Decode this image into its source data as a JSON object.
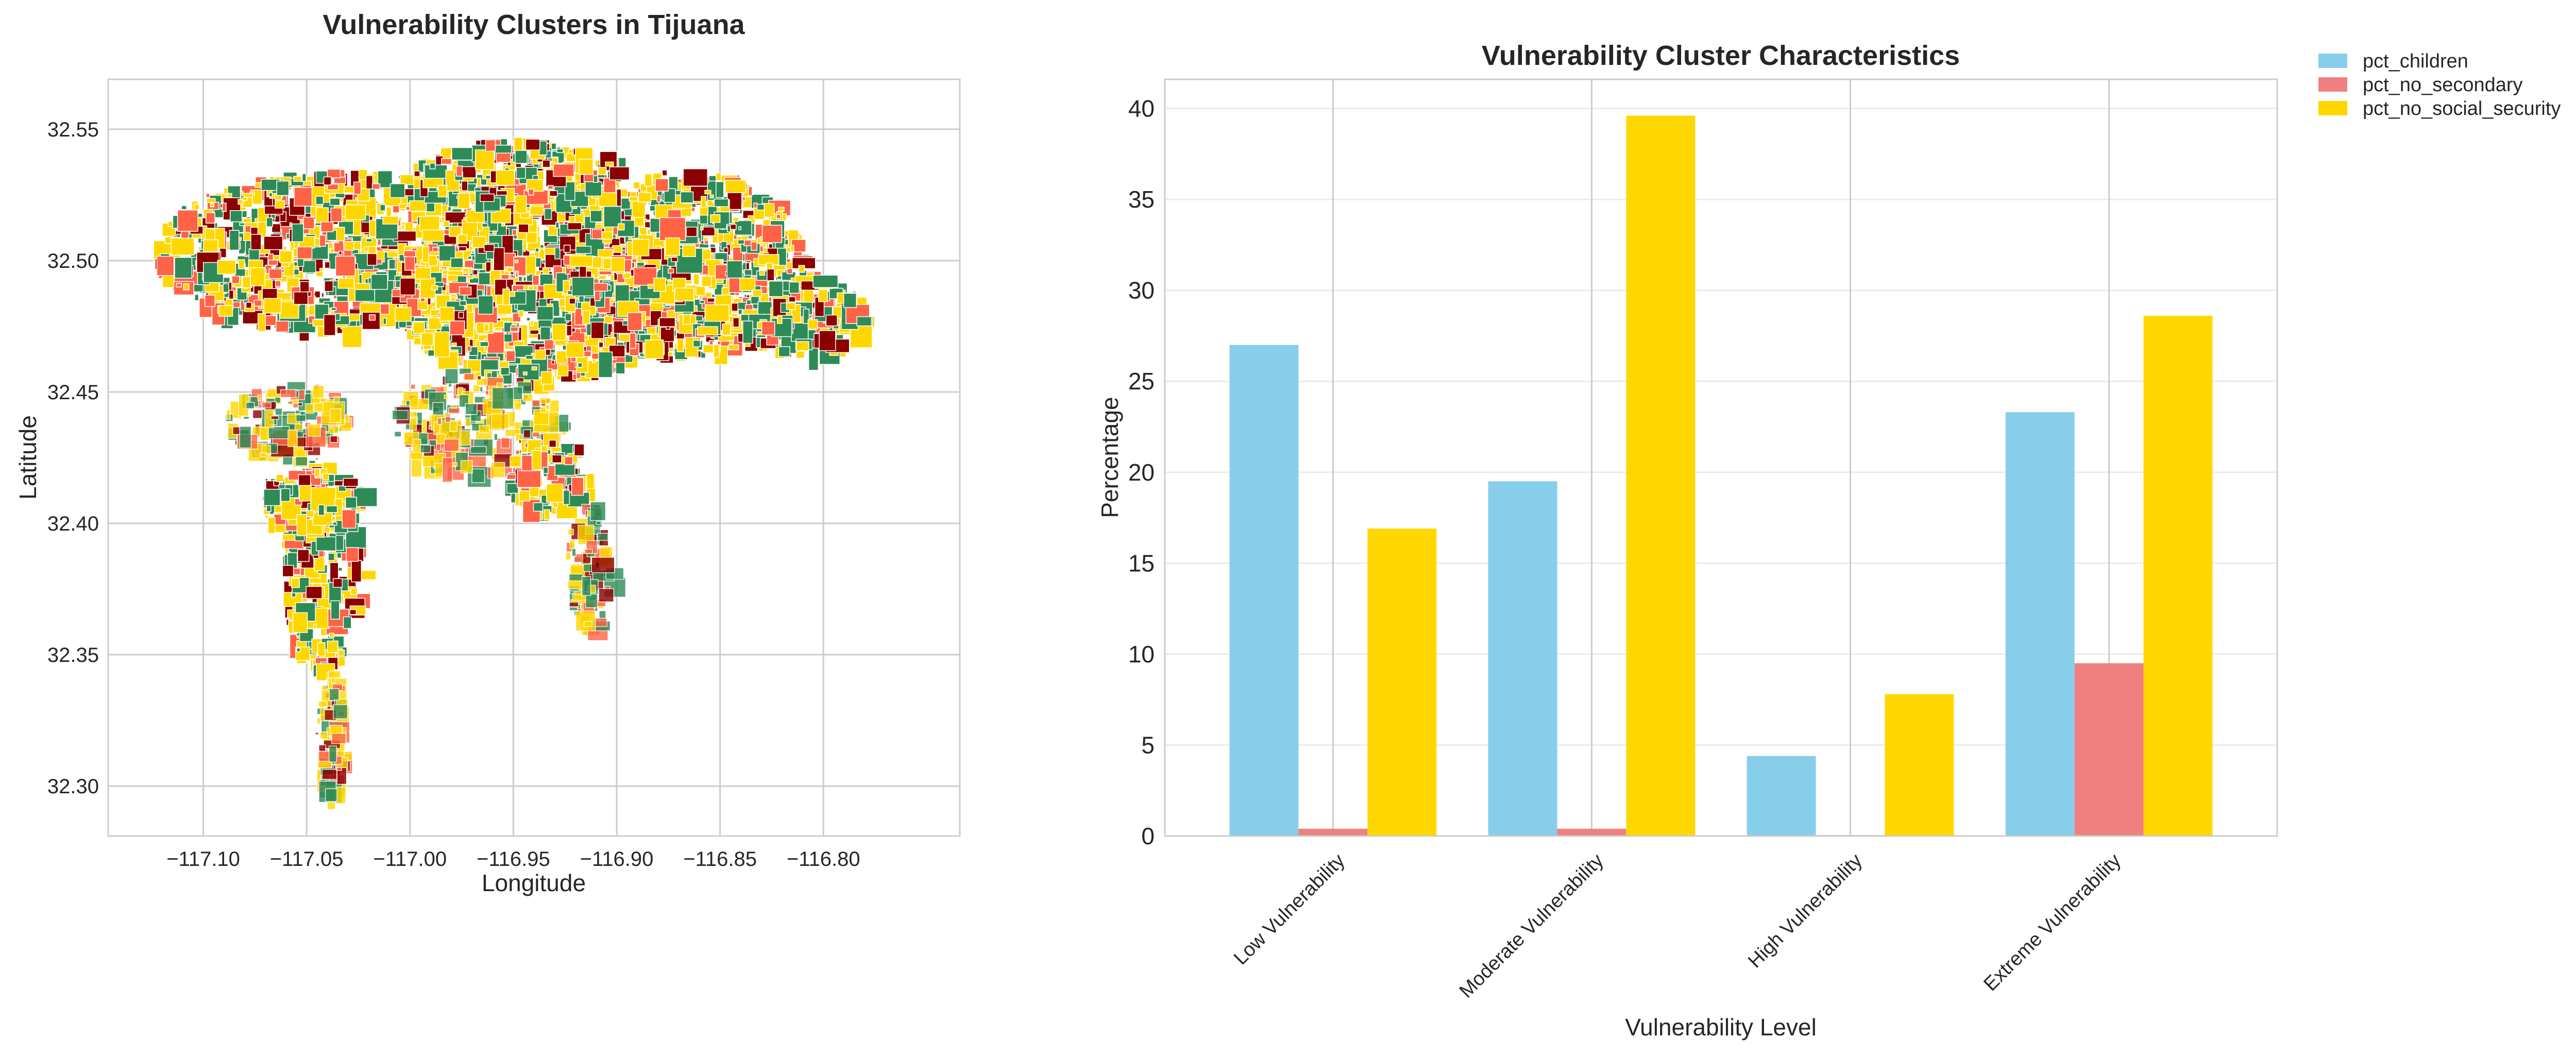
{
  "chart_data": [
    {
      "type": "map",
      "title": "Vulnerability Clusters in Tijuana",
      "xlabel": "Longitude",
      "ylabel": "Latitude",
      "xlim": [
        -117.146,
        -116.734
      ],
      "ylim": [
        32.281,
        32.569
      ],
      "xticks": [
        -117.1,
        -117.05,
        -117.0,
        -116.95,
        -116.9,
        -116.85,
        -116.8
      ],
      "xtick_labels": [
        "−117.10",
        "−117.05",
        "−117.00",
        "−116.95",
        "−116.90",
        "−116.85",
        "−116.80"
      ],
      "yticks": [
        32.3,
        32.35,
        32.4,
        32.45,
        32.5,
        32.55
      ],
      "ytick_labels": [
        "32.30",
        "32.35",
        "32.40",
        "32.45",
        "32.50",
        "32.55"
      ],
      "grid": true,
      "cluster_colors": [
        "#2E8B57",
        "#FFD700",
        "#FF6347",
        "#8B0000"
      ]
    },
    {
      "type": "bar",
      "title": "Vulnerability Cluster Characteristics",
      "xlabel": "Vulnerability Level",
      "ylabel": "Percentage",
      "categories": [
        "Low Vulnerability",
        "Moderate Vulnerability",
        "High Vulnerability",
        "Extreme Vulnerability"
      ],
      "series": [
        {
          "name": "pct_children",
          "color": "#87CEEB",
          "values": [
            27.0,
            19.5,
            4.4,
            23.3
          ]
        },
        {
          "name": "pct_no_secondary",
          "color": "#F08080",
          "values": [
            0.4,
            0.4,
            0.05,
            9.5
          ]
        },
        {
          "name": "pct_no_social_security",
          "color": "#FFD700",
          "values": [
            16.9,
            39.6,
            7.8,
            28.6
          ]
        }
      ],
      "ylim": [
        0,
        41.6
      ],
      "yticks": [
        0,
        5,
        10,
        15,
        20,
        25,
        30,
        35,
        40
      ],
      "grid": true,
      "legend_placement": "outside top-right"
    }
  ]
}
